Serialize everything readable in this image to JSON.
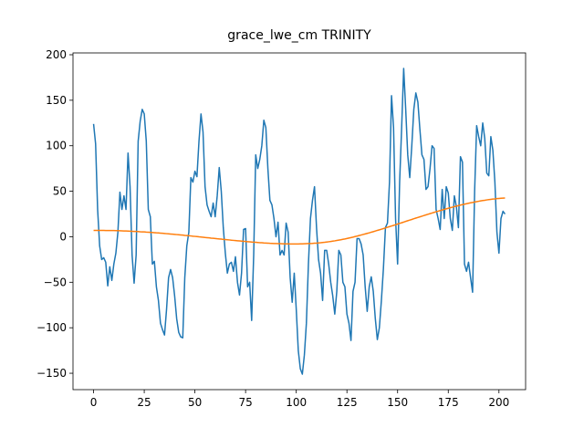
{
  "chart_data": {
    "type": "line",
    "title": "grace_lwe_cm TRINITY",
    "x": [
      0,
      1,
      2,
      3,
      4,
      5,
      6,
      7,
      8,
      9,
      10,
      11,
      12,
      13,
      14,
      15,
      16,
      17,
      18,
      19,
      20,
      21,
      22,
      23,
      24,
      25,
      26,
      27,
      28,
      29,
      30,
      31,
      32,
      33,
      34,
      35,
      36,
      37,
      38,
      39,
      40,
      41,
      42,
      43,
      44,
      45,
      46,
      47,
      48,
      49,
      50,
      51,
      52,
      53,
      54,
      55,
      56,
      57,
      58,
      59,
      60,
      61,
      62,
      63,
      64,
      65,
      66,
      67,
      68,
      69,
      70,
      71,
      72,
      73,
      74,
      75,
      76,
      77,
      78,
      79,
      80,
      81,
      82,
      83,
      84,
      85,
      86,
      87,
      88,
      89,
      90,
      91,
      92,
      93,
      94,
      95,
      96,
      97,
      98,
      99,
      100,
      101,
      102,
      103,
      104,
      105,
      106,
      107,
      108,
      109,
      110,
      111,
      112,
      113,
      114,
      115,
      116,
      117,
      118,
      119,
      120,
      121,
      122,
      123,
      124,
      125,
      126,
      127,
      128,
      129,
      130,
      131,
      132,
      133,
      134,
      135,
      136,
      137,
      138,
      139,
      140,
      141,
      142,
      143,
      144,
      145,
      146,
      147,
      148,
      149,
      150,
      151,
      152,
      153,
      154,
      155,
      156,
      157,
      158,
      159,
      160,
      161,
      162,
      163,
      164,
      165,
      166,
      167,
      168,
      169,
      170,
      171,
      172,
      173,
      174,
      175,
      176,
      177,
      178,
      179,
      180,
      181,
      182,
      183,
      184,
      185,
      186,
      187,
      188,
      189,
      190,
      191,
      192,
      193,
      194,
      195,
      196,
      197,
      198,
      199,
      200,
      201,
      202,
      203
    ],
    "series": [
      {
        "color": "#1f77b4",
        "values": [
          124,
          102,
          30,
          -10,
          -25,
          -23,
          -28,
          -54,
          -33,
          -48,
          -30,
          -18,
          5,
          49,
          30,
          45,
          30,
          92,
          55,
          -20,
          -51,
          -20,
          105,
          127,
          140,
          135,
          105,
          30,
          22,
          -30,
          -27,
          -55,
          -70,
          -95,
          -102,
          -108,
          -80,
          -45,
          -36,
          -45,
          -65,
          -90,
          -105,
          -110,
          -111,
          -45,
          -10,
          5,
          65,
          60,
          72,
          66,
          105,
          135,
          115,
          55,
          35,
          28,
          22,
          37,
          22,
          45,
          76,
          50,
          10,
          -18,
          -40,
          -30,
          -28,
          -38,
          -22,
          -50,
          -64,
          -40,
          8,
          9,
          -55,
          -50,
          -92,
          -20,
          90,
          75,
          85,
          100,
          128,
          120,
          75,
          40,
          35,
          20,
          0,
          16,
          -20,
          -15,
          -20,
          15,
          5,
          -45,
          -72,
          -40,
          -80,
          -125,
          -145,
          -151,
          -130,
          -95,
          -30,
          20,
          40,
          55,
          10,
          -25,
          -40,
          -70,
          -15,
          -15,
          -30,
          -50,
          -65,
          -85,
          -60,
          -15,
          -20,
          -50,
          -55,
          -85,
          -95,
          -114,
          -60,
          -50,
          -2,
          -2,
          -8,
          -20,
          -55,
          -82,
          -55,
          -44,
          -60,
          -90,
          -113,
          -100,
          -70,
          -35,
          10,
          15,
          60,
          155,
          120,
          20,
          -30,
          60,
          120,
          185,
          140,
          90,
          65,
          100,
          140,
          158,
          148,
          118,
          90,
          85,
          52,
          55,
          75,
          100,
          97,
          30,
          20,
          8,
          52,
          20,
          55,
          48,
          20,
          7,
          45,
          33,
          10,
          88,
          82,
          -30,
          -38,
          -28,
          -45,
          -61,
          50,
          122,
          110,
          100,
          125,
          108,
          70,
          67,
          110,
          95,
          60,
          5,
          -18,
          20,
          28,
          25
        ]
      },
      {
        "color": "#ff7f0e",
        "values": [
          7.0,
          7.0,
          7.0,
          7.0,
          7.0,
          7.0,
          6.9,
          6.9,
          6.9,
          6.8,
          6.8,
          6.7,
          6.7,
          6.6,
          6.5,
          6.4,
          6.3,
          6.2,
          6.1,
          6.0,
          5.9,
          5.8,
          5.7,
          5.5,
          5.4,
          5.3,
          5.1,
          5.0,
          4.8,
          4.7,
          4.5,
          4.3,
          4.2,
          4.0,
          3.8,
          3.6,
          3.4,
          3.2,
          3.0,
          2.8,
          2.6,
          2.4,
          2.2,
          2.0,
          1.8,
          1.5,
          1.3,
          1.1,
          0.9,
          0.6,
          0.4,
          0.2,
          -0.1,
          -0.3,
          -0.5,
          -0.8,
          -1.0,
          -1.2,
          -1.5,
          -1.7,
          -1.9,
          -2.2,
          -2.4,
          -2.6,
          -2.9,
          -3.1,
          -3.3,
          -3.5,
          -3.8,
          -4.0,
          -4.2,
          -4.4,
          -4.6,
          -4.8,
          -5.0,
          -5.2,
          -5.4,
          -5.6,
          -5.8,
          -6.0,
          -6.1,
          -6.3,
          -6.5,
          -6.6,
          -6.8,
          -6.9,
          -7.0,
          -7.2,
          -7.3,
          -7.4,
          -7.5,
          -7.6,
          -7.6,
          -7.7,
          -7.8,
          -7.8,
          -7.8,
          -7.9,
          -7.9,
          -7.9,
          -7.9,
          -7.9,
          -7.8,
          -7.8,
          -7.7,
          -7.6,
          -7.5,
          -7.4,
          -7.3,
          -7.1,
          -7.0,
          -6.8,
          -6.6,
          -6.3,
          -6.1,
          -5.8,
          -5.5,
          -5.2,
          -4.8,
          -4.5,
          -4.1,
          -3.7,
          -3.3,
          -2.8,
          -2.4,
          -1.9,
          -1.4,
          -0.9,
          -0.4,
          0.2,
          0.7,
          1.3,
          1.9,
          2.5,
          3.1,
          3.7,
          4.3,
          5.0,
          5.6,
          6.3,
          7.0,
          7.6,
          8.3,
          9.0,
          9.7,
          10.4,
          11.1,
          11.8,
          12.5,
          13.2,
          14.0,
          14.7,
          15.4,
          16.1,
          16.9,
          17.6,
          18.3,
          19.0,
          19.8,
          20.5,
          21.2,
          21.9,
          22.6,
          23.3,
          24.0,
          24.7,
          25.4,
          26.1,
          26.8,
          27.5,
          28.1,
          28.8,
          29.4,
          30.1,
          30.7,
          31.3,
          31.9,
          32.5,
          33.1,
          33.7,
          34.2,
          34.8,
          35.3,
          35.8,
          36.3,
          36.8,
          37.3,
          37.7,
          38.2,
          38.6,
          39.0,
          39.4,
          39.8,
          40.1,
          40.5,
          40.8,
          41.1,
          41.4,
          41.6,
          41.9,
          42.1,
          42.3,
          42.5,
          42.6
        ]
      }
    ],
    "xlim": [
      -10.15,
      213.15
    ],
    "ylim": [
      -168,
      202
    ],
    "xticks": [
      0,
      25,
      50,
      75,
      100,
      125,
      150,
      175,
      200
    ],
    "yticks": [
      {
        "value": -150,
        "label": "−150"
      },
      {
        "value": -100,
        "label": "−100"
      },
      {
        "value": -50,
        "label": "−50"
      },
      0,
      50,
      100,
      150,
      200
    ]
  }
}
